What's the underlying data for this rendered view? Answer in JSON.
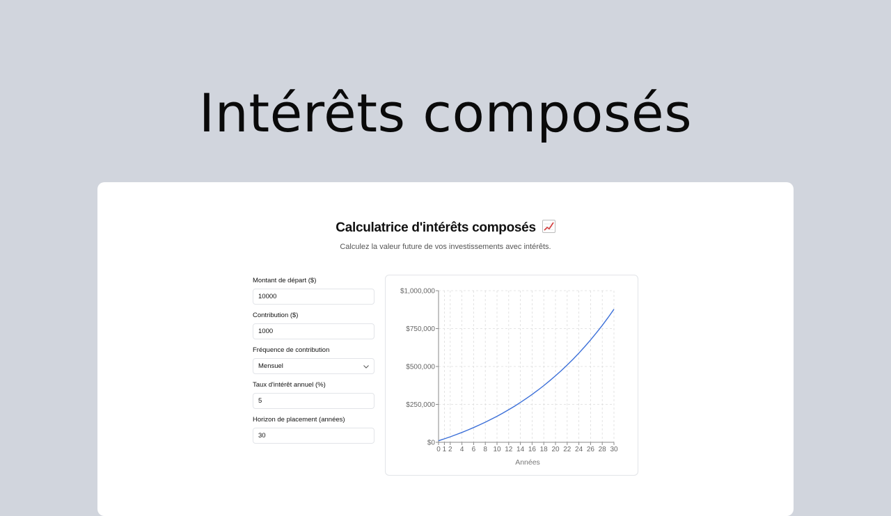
{
  "hero": {
    "title": "Intérêts composés"
  },
  "calculator": {
    "title": "Calculatrice d'intérêts composés",
    "emoji": "chart-increasing-icon",
    "subtitle": "Calculez la valeur future de vos investissements avec intérêts."
  },
  "form": {
    "start_amount": {
      "label": "Montant de départ ($)",
      "value": "10000"
    },
    "contribution": {
      "label": "Contribution ($)",
      "value": "1000"
    },
    "frequency": {
      "label": "Fréquence de contribution",
      "value": "Mensuel"
    },
    "rate": {
      "label": "Taux d'intérêt annuel (%)",
      "value": "5"
    },
    "horizon": {
      "label": "Horizon de placement (années)",
      "value": "30"
    }
  },
  "chart_data": {
    "type": "line",
    "xlabel": "Années",
    "ylabel": "",
    "xlim": [
      0,
      30
    ],
    "ylim": [
      0,
      1000000
    ],
    "x_ticks": [
      "0",
      "1",
      "2",
      "4",
      "6",
      "8",
      "10",
      "12",
      "14",
      "16",
      "18",
      "20",
      "22",
      "24",
      "26",
      "28",
      "30"
    ],
    "y_ticks": [
      "$0",
      "$250,000",
      "$500,000",
      "$750,000",
      "$1,000,000"
    ],
    "grid": true,
    "color": "#3b6fd8",
    "x": [
      0,
      1,
      2,
      3,
      4,
      5,
      6,
      7,
      8,
      9,
      10,
      11,
      12,
      13,
      14,
      15,
      16,
      17,
      18,
      19,
      20,
      21,
      22,
      23,
      24,
      25,
      26,
      27,
      28,
      29,
      30
    ],
    "values": [
      10000,
      22791,
      36236,
      50370,
      65227,
      80844,
      97262,
      114520,
      132662,
      151732,
      171779,
      192852,
      215005,
      238292,
      262770,
      288503,
      315553,
      343987,
      373878,
      405299,
      438329,
      473050,
      509548,
      547916,
      588248,
      630646,
      675215,
      722065,
      771316,
      823090,
      877514
    ]
  }
}
